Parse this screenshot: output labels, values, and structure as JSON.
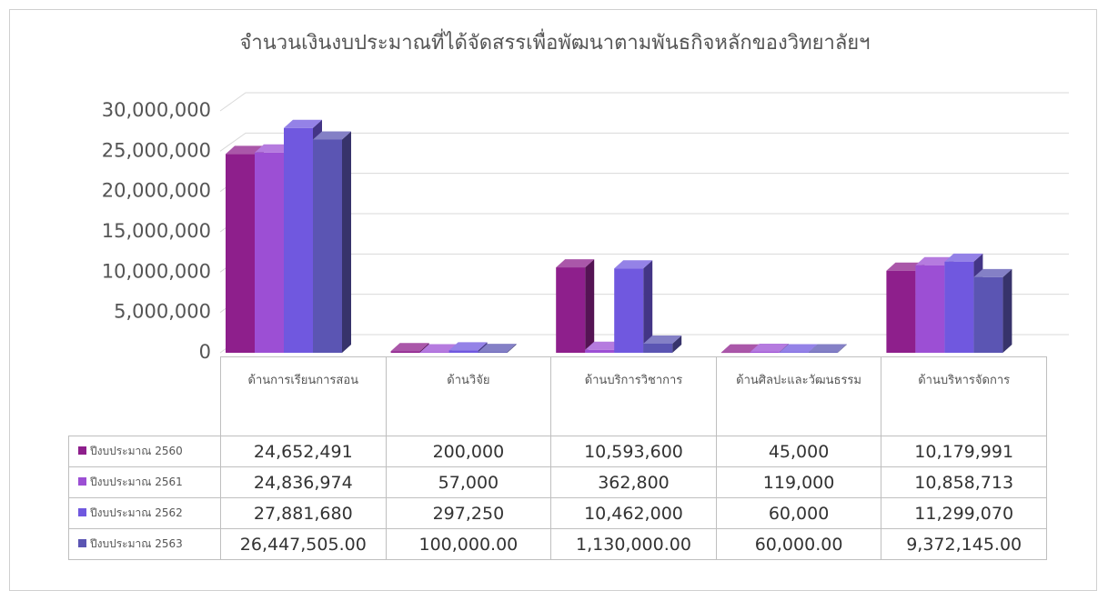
{
  "chart_data": {
    "type": "bar3d",
    "title": "จำนวนเงินงบประมาณที่ได้จัดสรรเพื่อพัฒนาตามพันธกิจหลักของวิทยาลัยฯ",
    "categories": [
      "ด้านการเรียนการสอน",
      "ด้านวิจัย",
      "ด้านบริการวิชาการ",
      "ด้านศิลปะและวัฒนธรรม",
      "ด้านบริหารจัดการ"
    ],
    "series": [
      {
        "name": "ปีงบประมาณ 2560",
        "color": "#8e1f8c",
        "values": [
          24652491,
          200000,
          10593600,
          45000,
          10179991
        ],
        "value_labels": [
          "24,652,491",
          "200,000",
          "10,593,600",
          "45,000",
          "10,179,991"
        ]
      },
      {
        "name": "ปีงบประมาณ 2561",
        "color": "#9c4fd4",
        "values": [
          24836974,
          57000,
          362800,
          119000,
          10858713
        ],
        "value_labels": [
          "24,836,974",
          "57,000",
          "362,800",
          "119,000",
          "10,858,713"
        ]
      },
      {
        "name": "ปีงบประมาณ 2562",
        "color": "#7058df",
        "values": [
          27881680,
          297250,
          10462000,
          60000,
          11299070
        ],
        "value_labels": [
          "27,881,680",
          "297,250",
          "10,462,000",
          "60,000",
          "11,299,070"
        ]
      },
      {
        "name": "ปีงบประมาณ 2563",
        "color": "#5b55b3",
        "values": [
          26447505,
          100000,
          1130000,
          60000,
          9372145
        ],
        "value_labels": [
          "26,447,505.00",
          "100,000.00",
          "1,130,000.00",
          "60,000.00",
          "9,372,145.00"
        ]
      }
    ],
    "ylim": [
      0,
      30000000
    ],
    "yticks": [
      0,
      {
        "value": 5000000,
        "label": "5,000,000"
      },
      {
        "value": 10000000,
        "label": "10,000,000"
      },
      {
        "value": 15000000,
        "label": "15,000,000"
      },
      {
        "value": 20000000,
        "label": "20,000,000"
      },
      {
        "value": 25000000,
        "label": "25,000,000"
      },
      {
        "value": 30000000,
        "label": "30,000,000"
      }
    ],
    "grid": true
  }
}
